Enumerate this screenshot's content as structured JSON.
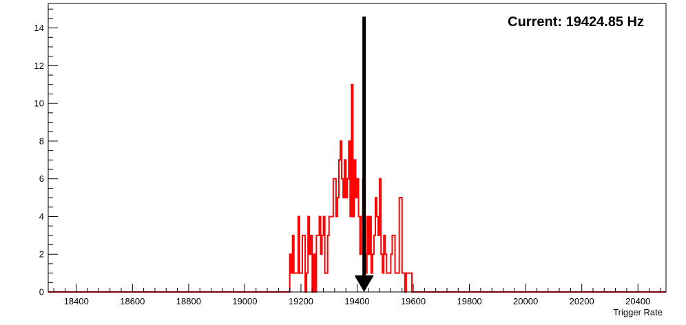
{
  "chart_data": {
    "type": "histogram",
    "xlabel": "Trigger Rate",
    "ylabel": "",
    "title": "",
    "xlim": [
      18300,
      20500
    ],
    "ylim": [
      0,
      15.3
    ],
    "x_ticks": [
      18400,
      18600,
      18800,
      19000,
      19200,
      19400,
      19600,
      19800,
      20000,
      20200,
      20400
    ],
    "y_ticks": [
      0,
      2,
      4,
      6,
      8,
      10,
      12,
      14
    ],
    "grid": false,
    "legend": "none",
    "colors": {
      "series": "#ff0000",
      "marker": "#000000",
      "frame": "#000000"
    },
    "series": [
      {
        "bin_edges": [
          19160,
          19165,
          19170,
          19175,
          19180,
          19185,
          19190,
          19195,
          19200,
          19205,
          19210,
          19215,
          19220,
          19225,
          19230,
          19235,
          19240,
          19245,
          19250,
          19255,
          19260,
          19265,
          19270,
          19275,
          19280,
          19285,
          19290,
          19295,
          19300,
          19305,
          19310,
          19315,
          19320,
          19325,
          19330,
          19335,
          19340,
          19345,
          19350,
          19355,
          19360,
          19365,
          19370,
          19375,
          19380,
          19385,
          19390,
          19395,
          19400,
          19405,
          19410,
          19415,
          19420,
          19425,
          19430,
          19435,
          19440,
          19445,
          19450,
          19455,
          19460,
          19465,
          19470,
          19475,
          19480,
          19485,
          19490,
          19495,
          19500,
          19505,
          19510,
          19515,
          19520,
          19525,
          19530,
          19535,
          19540,
          19545,
          19550,
          19555,
          19560,
          19565,
          19570,
          19575,
          19580,
          19585,
          19590,
          19595,
          19600,
          19605,
          19610,
          19615,
          19620,
          19625,
          19630,
          19635,
          19640,
          19645,
          19650
        ],
        "counts": [
          2,
          1,
          3,
          1,
          1,
          1,
          4,
          1,
          1,
          3,
          3,
          0,
          1,
          4,
          2,
          3,
          0,
          2,
          0,
          3,
          3,
          4,
          2,
          3,
          4,
          1,
          1,
          3,
          4,
          4,
          4,
          6,
          6,
          4,
          5,
          7,
          8,
          6,
          5,
          7,
          5,
          6,
          8,
          4,
          11,
          4,
          7,
          5,
          6,
          4,
          2,
          4,
          6,
          2,
          1,
          4,
          2,
          4,
          1,
          2,
          3,
          5,
          4,
          3,
          6,
          2,
          1,
          3,
          2,
          1,
          1,
          1,
          2,
          3,
          3,
          1,
          1,
          1,
          5,
          5,
          1,
          1,
          0,
          1,
          1,
          1,
          1,
          0,
          0,
          0,
          0,
          0,
          0,
          0,
          0,
          0,
          0,
          0
        ]
      }
    ],
    "marker": {
      "x": 19424.85,
      "y_top": 14.6,
      "type": "down-arrow"
    },
    "annotation": "Current: 19424.85 Hz"
  }
}
